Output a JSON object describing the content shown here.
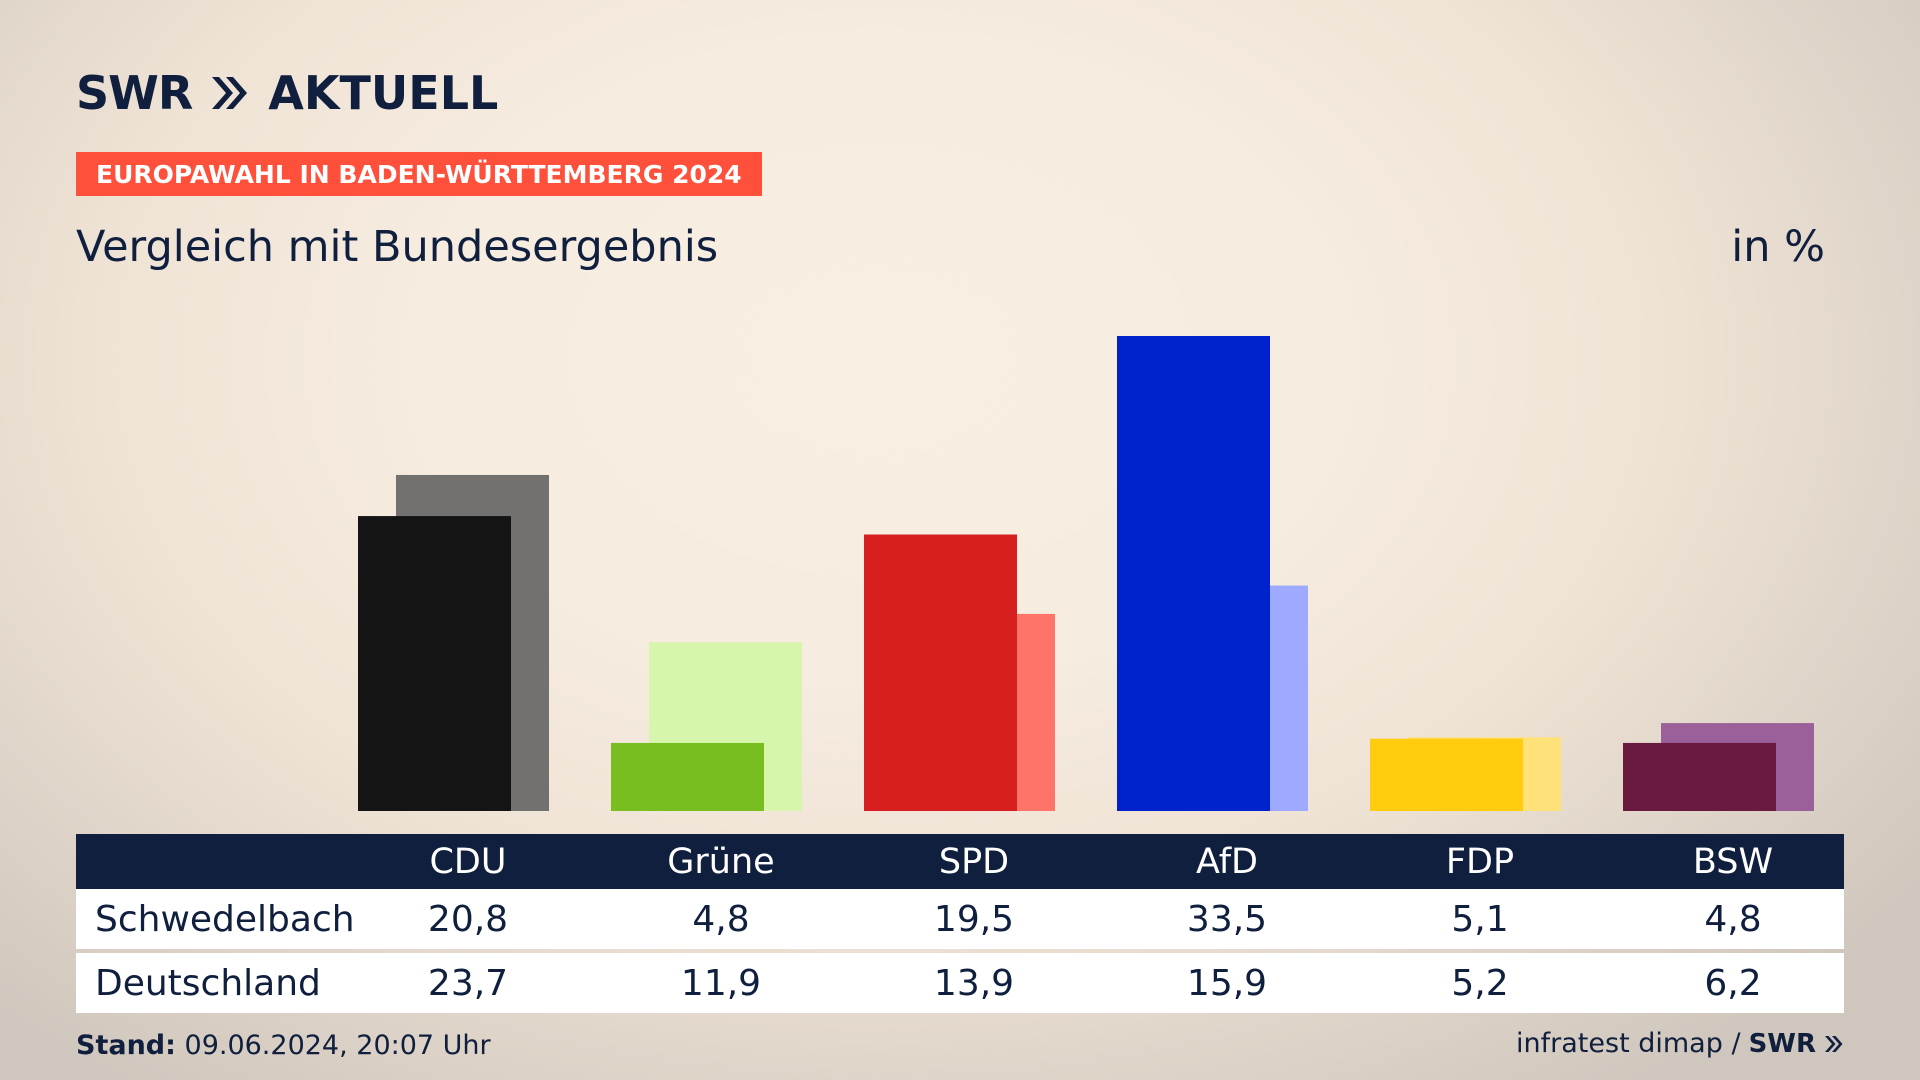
{
  "header": {
    "logo_brand": "SWR",
    "logo_product": "AKTUELL",
    "badge": "EUROPAWAHL IN BADEN-WÜRTTEMBERG 2024",
    "subtitle": "Vergleich mit Bundesergebnis",
    "unit": "in %"
  },
  "colors": {
    "navy": "#0f1f3d",
    "badge": "#ff503c"
  },
  "icons": {
    "brand_arrows": "double-chevron-right-icon"
  },
  "chart_data": {
    "type": "bar",
    "categories": [
      "CDU",
      "Grüne",
      "SPD",
      "AfD",
      "FDP",
      "BSW"
    ],
    "series": [
      {
        "name": "Schwedelbach",
        "values": [
          20.8,
          4.8,
          19.5,
          33.5,
          5.1,
          4.8
        ],
        "colors": [
          "#141414",
          "#78be20",
          "#d71f1f",
          "#0022cc",
          "#ffcc0e",
          "#6b1a3f"
        ]
      },
      {
        "name": "Deutschland",
        "values": [
          23.7,
          11.9,
          13.9,
          15.9,
          5.2,
          6.2
        ],
        "colors": [
          "#737170",
          "#d7f5ac",
          "#ff7468",
          "#9eaaff",
          "#ffe17a",
          "#9b5f9a"
        ]
      }
    ],
    "ylim": [
      0,
      33.5
    ],
    "grid": false,
    "legend": "table-below"
  },
  "table": {
    "headers": [
      "CDU",
      "Grüne",
      "SPD",
      "AfD",
      "FDP",
      "BSW"
    ],
    "rows": [
      {
        "label": "Schwedelbach",
        "values": [
          "20,8",
          "4,8",
          "19,5",
          "33,5",
          "5,1",
          "4,8"
        ]
      },
      {
        "label": "Deutschland",
        "values": [
          "23,7",
          "11,9",
          "13,9",
          "15,9",
          "5,2",
          "6,2"
        ]
      }
    ]
  },
  "footer": {
    "stand_label": "Stand:",
    "stand_value": "09.06.2024, 20:07 Uhr",
    "source": "infratest dimap /",
    "source_brand": "SWR"
  }
}
